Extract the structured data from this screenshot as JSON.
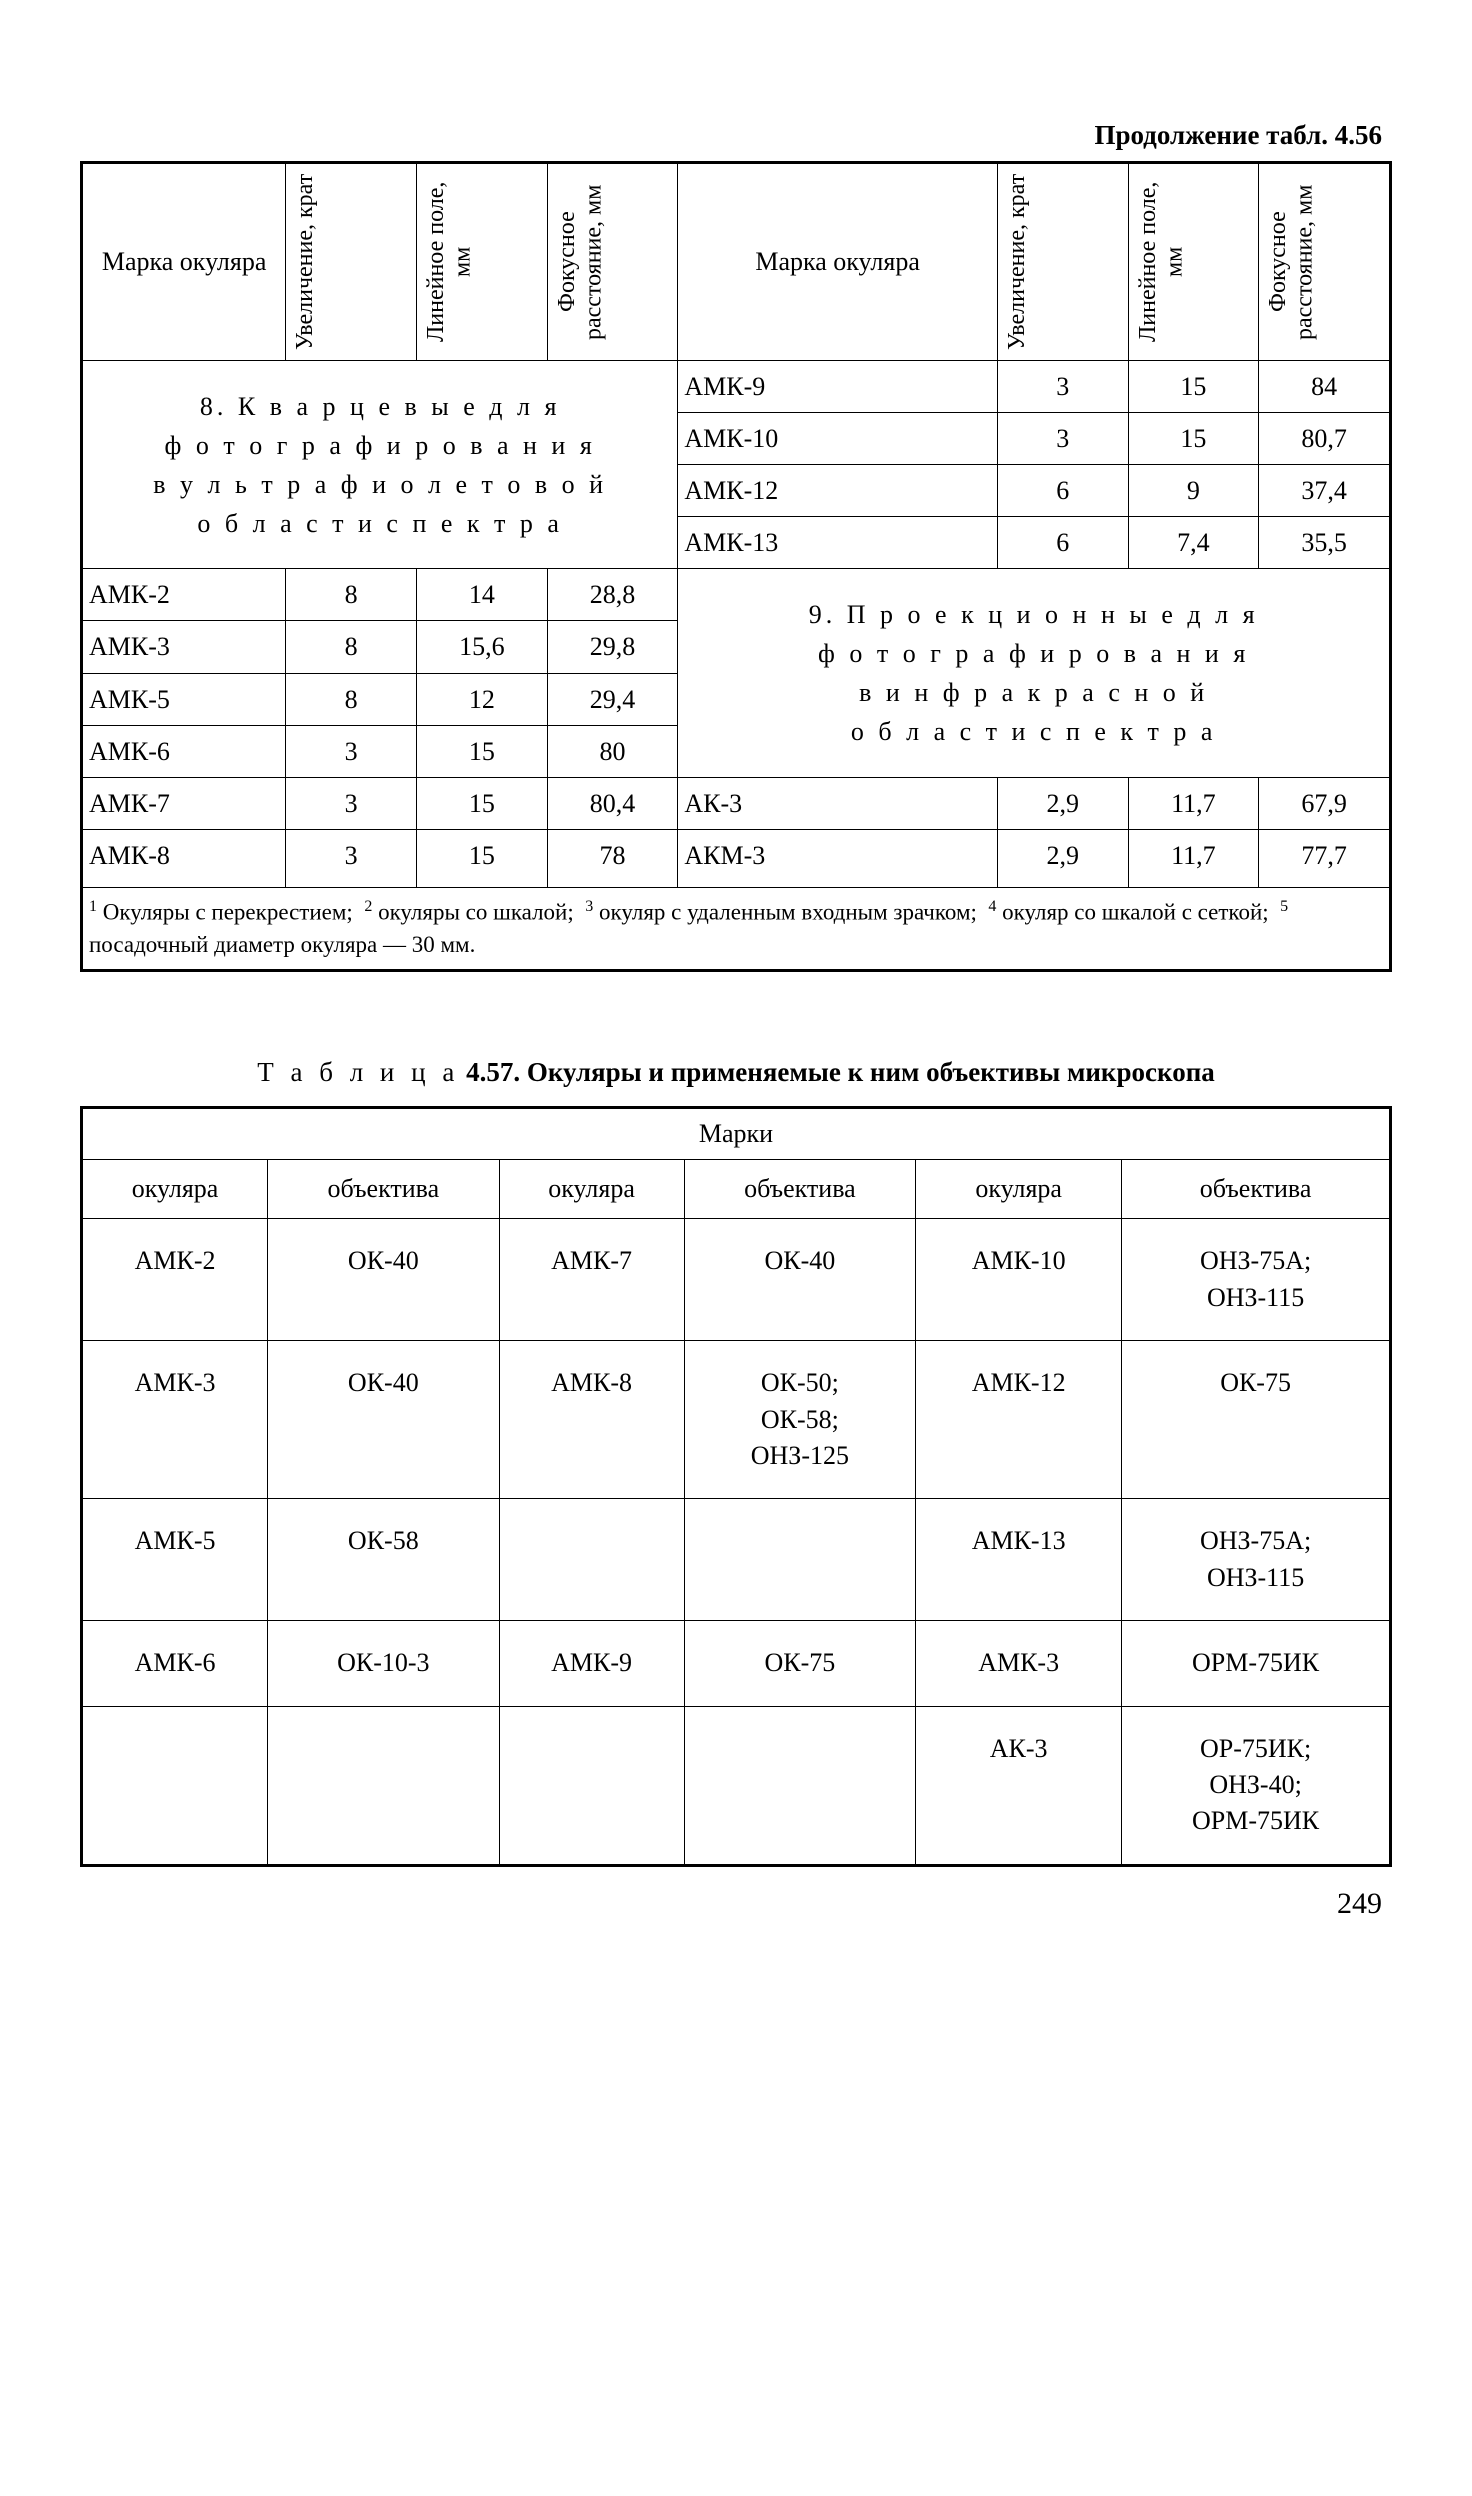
{
  "continuation_label": "Продолжение табл. 4.56",
  "headers": {
    "brand": "Марка окуляра",
    "magnification": "Увеличение, крат",
    "linear_field": "Линейное поле, мм",
    "focal_length": "Фокусное расстояние, мм"
  },
  "section8": {
    "title_line1": "8. К в а р ц е в ы е  д л я",
    "title_line2": "ф о т о г р а ф и р о в а н и я",
    "title_line3": "в  у л ь т р а ф и о л е т о в о й",
    "title_line4": "о б л а с т и  с п е к т р а",
    "left_rows": [
      {
        "brand": "АМК-2",
        "mag": "8",
        "field": "14",
        "focal": "28,8"
      },
      {
        "brand": "АМК-3",
        "mag": "8",
        "field": "15,6",
        "focal": "29,8"
      },
      {
        "brand": "АМК-5",
        "mag": "8",
        "field": "12",
        "focal": "29,4"
      },
      {
        "brand": "АМК-6",
        "mag": "3",
        "field": "15",
        "focal": "80"
      },
      {
        "brand": "АМК-7",
        "mag": "3",
        "field": "15",
        "focal": "80,4"
      },
      {
        "brand": "АМК-8",
        "mag": "3",
        "field": "15",
        "focal": "78"
      }
    ],
    "right_rows": [
      {
        "brand": "АМК-9",
        "mag": "3",
        "field": "15",
        "focal": "84"
      },
      {
        "brand": "АМК-10",
        "mag": "3",
        "field": "15",
        "focal": "80,7"
      },
      {
        "brand": "АМК-12",
        "mag": "6",
        "field": "9",
        "focal": "37,4"
      },
      {
        "brand": "АМК-13",
        "mag": "6",
        "field": "7,4",
        "focal": "35,5"
      }
    ]
  },
  "section9": {
    "title_line1": "9. П р о е к ц и о н н ы е  д л я",
    "title_line2": "ф о т о г р а ф и р о в а н и я",
    "title_line3": "в  и н ф р а к р а с н о й",
    "title_line4": "о б л а с т и  с п е к т р а",
    "rows": [
      {
        "brand": "АК-3",
        "mag": "2,9",
        "field": "11,7",
        "focal": "67,9"
      },
      {
        "brand": "АКМ-3",
        "mag": "2,9",
        "field": "11,7",
        "focal": "77,7"
      }
    ]
  },
  "footnotes": {
    "n1": "Окуляры с перекрестием;",
    "n2": "окуляры со шкалой;",
    "n3": "окуляр с удаленным входным зрачком;",
    "n4": "окуляр со шкалой с сеткой;",
    "n5": "посадочный диаметр окуляра — 30 мм."
  },
  "table2": {
    "caption_prefix": "Т а б л и ц а",
    "caption_number": "4.57.",
    "caption_text": "Окуляры и применяемые к ним объективы микроскопа",
    "super_header": "Марки",
    "sub_headers": {
      "ocular": "окуляра",
      "objective": "объектива"
    },
    "rows": [
      {
        "c1": "АМК-2",
        "c2": "ОК-40",
        "c3": "АМК-7",
        "c4": "ОК-40",
        "c5": "АМК-10",
        "c6": "ОНЗ-75А; ОНЗ-115"
      },
      {
        "c1": "АМК-3",
        "c2": "ОК-40",
        "c3": "АМК-8",
        "c4": "ОК-50; ОК-58; ОНЗ-125",
        "c5": "АМК-12",
        "c6": "ОК-75"
      },
      {
        "c1": "АМК-5",
        "c2": "ОК-58",
        "c3": "",
        "c4": "",
        "c5": "АМК-13",
        "c6": "ОНЗ-75А; ОНЗ-115"
      },
      {
        "c1": "АМК-6",
        "c2": "ОК-10-3",
        "c3": "АМК-9",
        "c4": "ОК-75",
        "c5": "АМК-3",
        "c6": "ОРМ-75ИК"
      },
      {
        "c1": "",
        "c2": "",
        "c3": "",
        "c4": "",
        "c5": "АК-3",
        "c6": "ОР-75ИК; ОНЗ-40; ОРМ-75ИК"
      }
    ]
  },
  "page_number": "249"
}
